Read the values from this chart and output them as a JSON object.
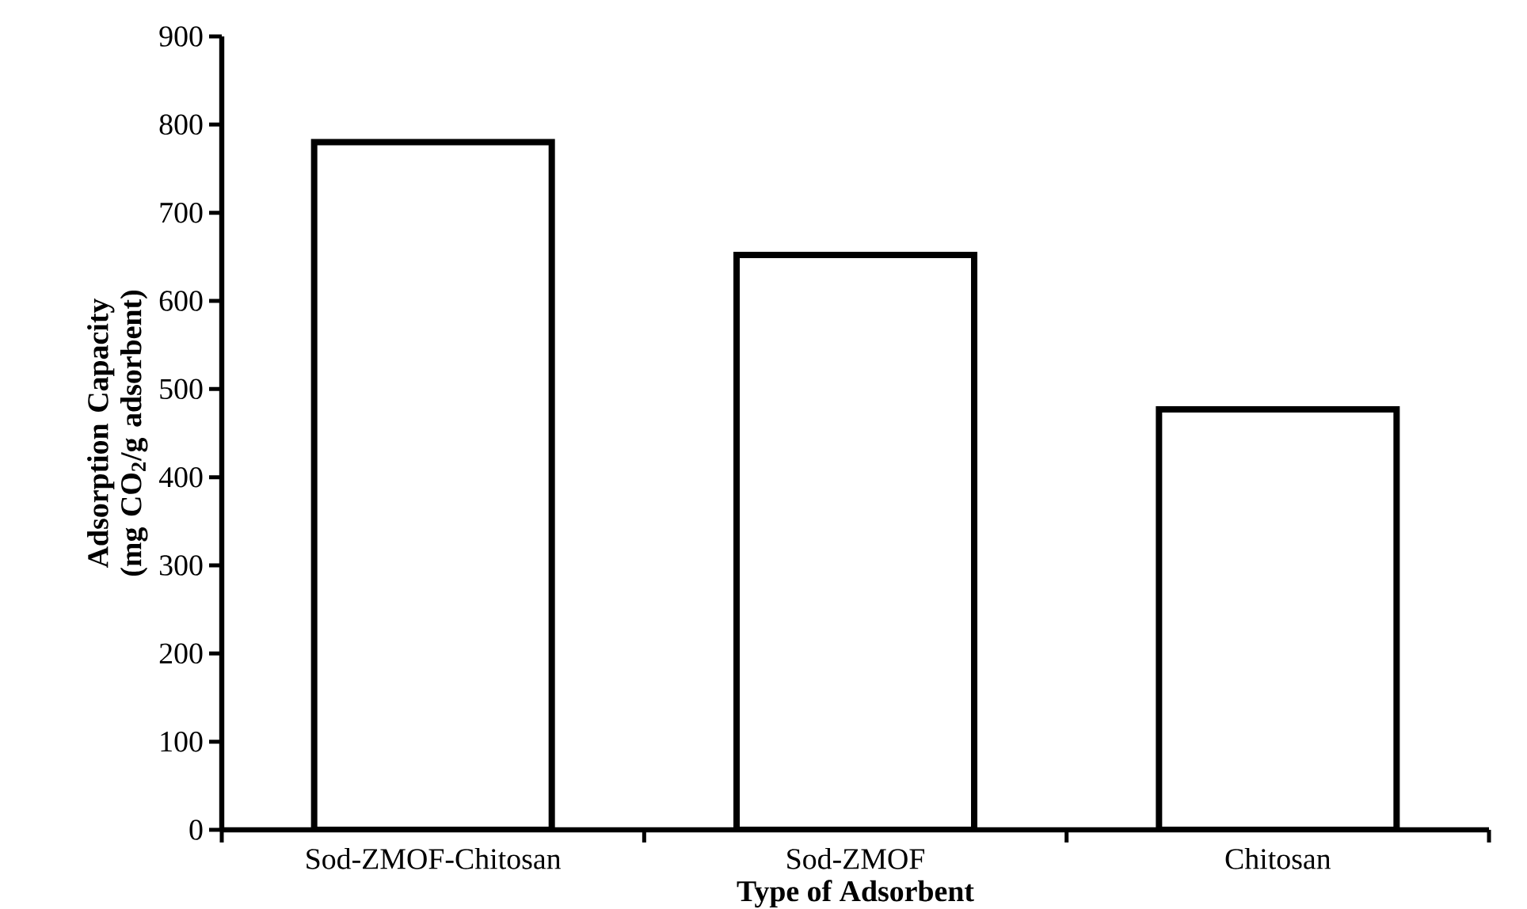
{
  "chart_data": {
    "type": "bar",
    "xlabel": "Type of Adsorbent",
    "ylabel": "Adsorption Capacity (mg CO$_{2}$/g adsorbent)",
    "categories": [
      "Sod-ZMOF-Chitosan",
      "Sod-ZMOF",
      "Chitosan"
    ],
    "values": [
      780,
      652,
      477
    ],
    "color": "#ffffff",
    "ylim": [
      0,
      900
    ],
    "yticks": [
      0,
      100,
      200,
      300,
      400,
      500,
      600,
      700,
      800,
      900
    ],
    "grid": false
  }
}
